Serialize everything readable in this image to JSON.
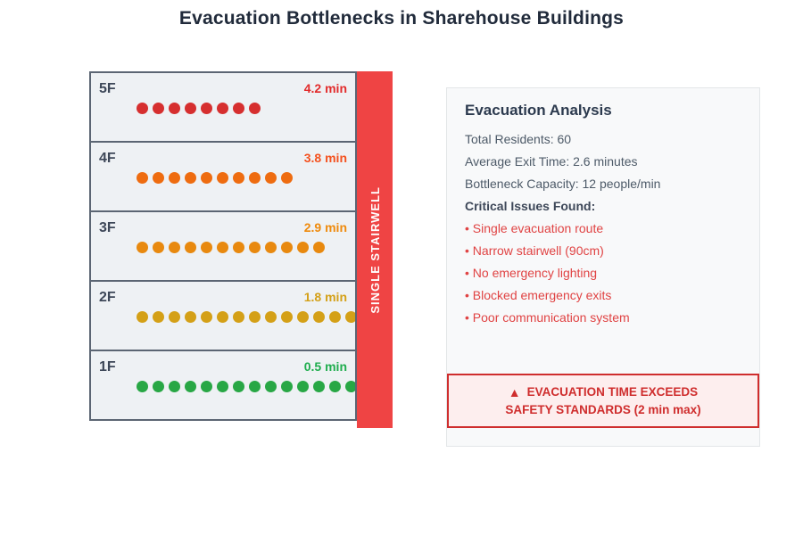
{
  "title": "Evacuation Bottlenecks in Sharehouse Buildings",
  "building": {
    "floors": [
      {
        "label": "5F",
        "time": "4.2 min",
        "people": 8,
        "dot_color": "#d62f2f",
        "time_color": "#e22b2b"
      },
      {
        "label": "4F",
        "time": "3.8 min",
        "people": 10,
        "dot_color": "#ee6c10",
        "time_color": "#f4511e"
      },
      {
        "label": "3F",
        "time": "2.9 min",
        "people": 12,
        "dot_color": "#e8890f",
        "time_color": "#ef8a0c"
      },
      {
        "label": "2F",
        "time": "1.8 min",
        "people": 14,
        "dot_color": "#d4a017",
        "time_color": "#d4a017"
      },
      {
        "label": "1F",
        "time": "0.5 min",
        "people": 16,
        "dot_color": "#28a745",
        "time_color": "#1fad4e"
      }
    ],
    "stairwell_label": "SINGLE STAIRWELL",
    "stairwell_color": "#ef4444"
  },
  "analysis": {
    "heading": "Evacuation Analysis",
    "stats": [
      "Total Residents: 60",
      "Average Exit Time: 2.6 minutes",
      "Bottleneck Capacity: 12 people/min"
    ],
    "issues_heading": "Critical Issues Found:",
    "issues": [
      "Single evacuation route",
      "Narrow stairwell (90cm)",
      "No emergency lighting",
      "Blocked emergency exits",
      "Poor communication system"
    ],
    "warning": {
      "line1": "EVACUATION TIME EXCEEDS",
      "line2": "SAFETY STANDARDS (2 min max)",
      "color": "#cf2d2d"
    }
  }
}
